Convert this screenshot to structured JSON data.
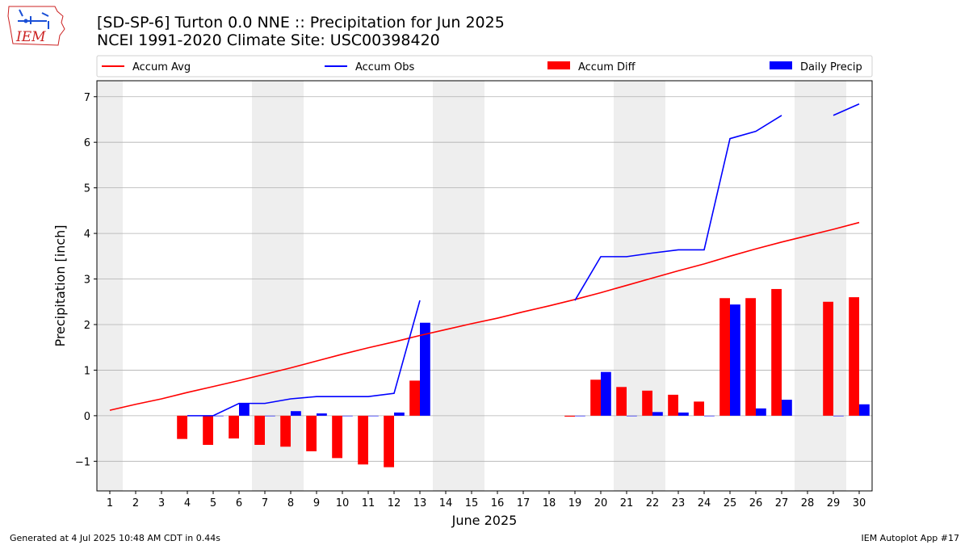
{
  "header": {
    "title_line1": "[SD-SP-6] Turton 0.0 NNE :: Precipitation for Jun 2025",
    "title_line2": "NCEI 1991-2020 Climate Site: USC00398420"
  },
  "logo": {
    "text": "IEM",
    "icon": "iem-iowa-state-logo"
  },
  "footer": {
    "left": "Generated at 4 Jul 2025 10:48 AM CDT in 0.44s",
    "right": "IEM Autoplot App #17"
  },
  "colors": {
    "avg": "#ff0000",
    "obs": "#0000ff",
    "diff": "#ff0000",
    "daily": "#0000ff",
    "weekend": "#eeeeee",
    "grid": "#b0b0b0"
  },
  "chart_data": {
    "type": "bar",
    "xlabel": "June 2025",
    "ylabel": "Precipitation [inch]",
    "xlim": [
      0.5,
      30.5
    ],
    "ylim": [
      -1.65,
      7.35
    ],
    "yticks": [
      -1,
      0,
      1,
      2,
      3,
      4,
      5,
      6,
      7
    ],
    "ytick_labels": [
      "−1",
      "0",
      "1",
      "2",
      "3",
      "4",
      "5",
      "6",
      "7"
    ],
    "x": [
      1,
      2,
      3,
      4,
      5,
      6,
      7,
      8,
      9,
      10,
      11,
      12,
      13,
      14,
      15,
      16,
      17,
      18,
      19,
      20,
      21,
      22,
      23,
      24,
      25,
      26,
      27,
      28,
      29,
      30
    ],
    "grid": "horizontal",
    "legend_placement": "top, above plot",
    "weekend_shading": [
      [
        0.5,
        1.5
      ],
      [
        6.5,
        8.5
      ],
      [
        13.5,
        15.5
      ],
      [
        20.5,
        22.5
      ],
      [
        27.5,
        29.5
      ]
    ],
    "series": [
      {
        "name": "Accum Avg",
        "kind": "line",
        "values": [
          0.12,
          0.25,
          0.37,
          0.51,
          0.64,
          0.77,
          0.91,
          1.05,
          1.2,
          1.35,
          1.49,
          1.62,
          1.76,
          1.89,
          2.02,
          2.14,
          2.28,
          2.41,
          2.55,
          2.7,
          2.86,
          3.02,
          3.18,
          3.33,
          3.5,
          3.66,
          3.81,
          3.95,
          4.09,
          4.24
        ]
      },
      {
        "name": "Accum Obs",
        "kind": "line",
        "values": [
          null,
          null,
          null,
          0.0,
          0.0,
          0.27,
          0.27,
          0.37,
          0.42,
          0.42,
          0.42,
          0.49,
          2.53,
          null,
          null,
          null,
          null,
          null,
          2.53,
          3.49,
          3.49,
          3.57,
          3.64,
          3.64,
          6.08,
          6.24,
          6.59,
          null,
          6.59,
          6.84
        ]
      },
      {
        "name": "Accum Diff",
        "kind": "bar",
        "values": [
          null,
          null,
          null,
          -0.51,
          -0.64,
          -0.5,
          -0.64,
          -0.68,
          -0.78,
          -0.93,
          -1.07,
          -1.13,
          0.77,
          null,
          null,
          null,
          null,
          null,
          -0.02,
          0.79,
          0.63,
          0.55,
          0.46,
          0.31,
          2.58,
          2.58,
          2.78,
          null,
          2.5,
          2.6
        ]
      },
      {
        "name": "Daily Precip",
        "kind": "bar",
        "values": [
          null,
          null,
          null,
          0.0,
          0.0,
          0.27,
          0.0,
          0.1,
          0.05,
          0.0,
          0.0,
          0.07,
          2.04,
          null,
          null,
          null,
          null,
          null,
          0.0,
          0.96,
          0.0,
          0.08,
          0.07,
          0.0,
          2.44,
          0.16,
          0.35,
          null,
          0.0,
          0.25
        ]
      }
    ]
  }
}
